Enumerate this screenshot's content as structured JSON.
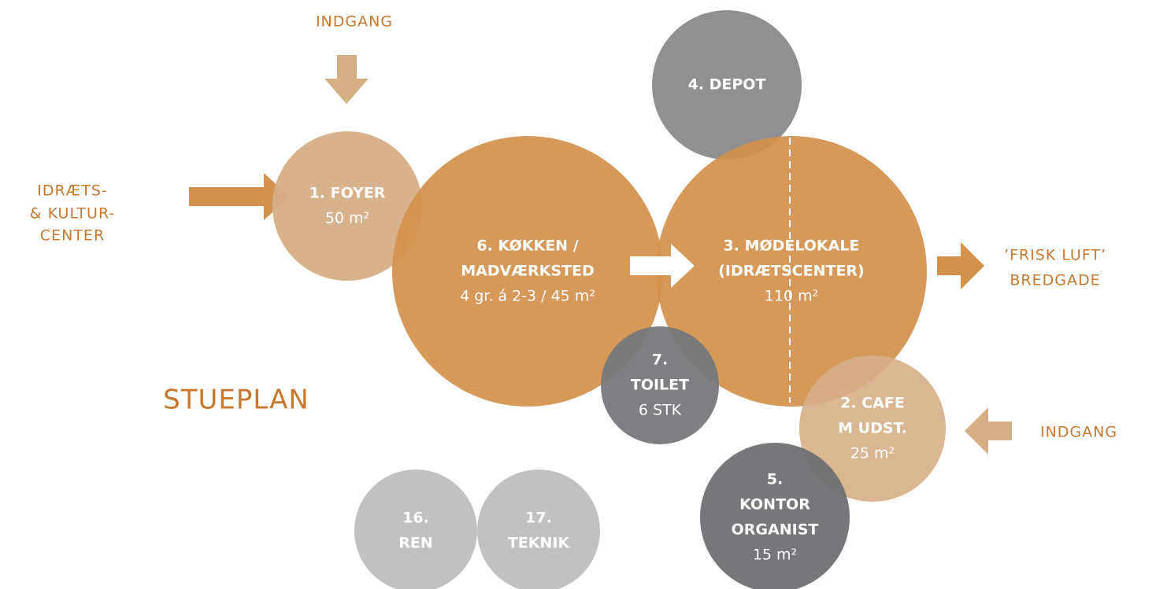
{
  "title": "STUEPLAN",
  "labels": {
    "top_entrance": "INDGANG",
    "left": [
      "IDRÆTS-",
      "& KULTUR-",
      "CENTER"
    ],
    "right": [
      "’FRISK LUFT’",
      "BREDGADE"
    ],
    "right_entrance": "INDGANG"
  },
  "nodes": [
    {
      "lines": [
        "1. FOYER",
        "50 m²"
      ]
    },
    {
      "lines": [
        "6. KØKKEN /",
        "MADVÆRKSTED",
        "4 gr. á 2-3 / 45 m²"
      ]
    },
    {
      "lines": [
        "3. MØDELOKALE",
        "(IDRÆTSCENTER)",
        "110 m²"
      ]
    },
    {
      "lines": [
        "4. DEPOT"
      ]
    },
    {
      "lines": [
        "7.",
        "TOILET",
        "6 STK"
      ]
    },
    {
      "lines": [
        "2. CAFE",
        "M UDST.",
        "25 m²"
      ]
    },
    {
      "lines": [
        "5.",
        "KONTOR",
        "ORGANIST",
        "15 m²"
      ]
    },
    {
      "lines": [
        "16.",
        "REN"
      ]
    },
    {
      "lines": [
        "17.",
        "TEKNIK"
      ]
    }
  ]
}
